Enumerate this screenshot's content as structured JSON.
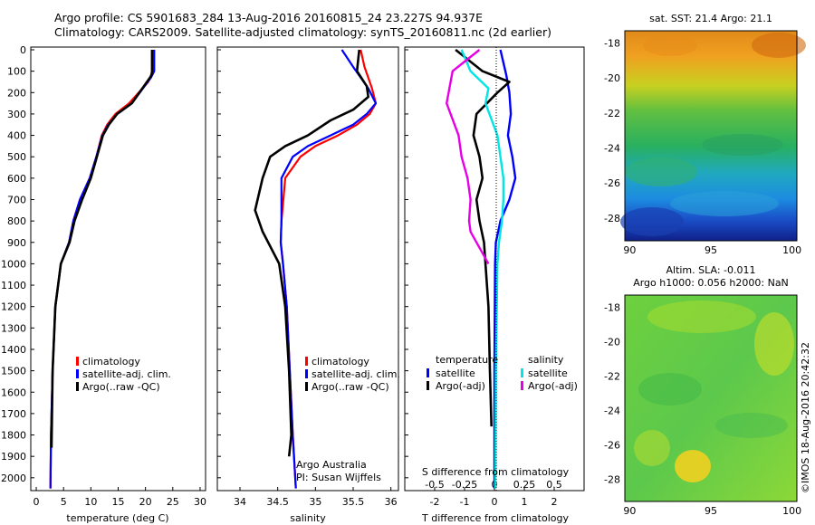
{
  "title_line1": "Argo profile: CS 5901683_284 13-Aug-2016 20160815_24 23.227S 94.937E",
  "title_line2": "Climatology: CARS2009. Satellite-adjusted climatology: synTS_20160811.nc (2d earlier)",
  "colors": {
    "climatology": "#ff0000",
    "satellite": "#0000ff",
    "argo": "#000000",
    "sat_s": "#00e5e5",
    "argo_s": "#e600e6"
  },
  "depth_ticks": [
    0,
    100,
    200,
    300,
    400,
    500,
    600,
    700,
    800,
    900,
    1000,
    1100,
    1200,
    1300,
    1400,
    1500,
    1600,
    1700,
    1800,
    1900,
    2000
  ],
  "legend": {
    "climatology": "climatology",
    "satellite_adj": "satellite-adj. clim.",
    "argo_raw": "Argo(..raw -QC)",
    "temperature": "temperature",
    "salinity": "salinity",
    "satellite": "satellite",
    "argo_adj": "Argo(-adj)"
  },
  "notes": {
    "argo_australia": "Argo Australia",
    "pi": "PI: Susan Wijffels"
  },
  "map_titles": {
    "sst": "sat. SST: 21.4 Argo: 21.1",
    "sla1": "Altim. SLA: -0.011",
    "sla2": "Argo h1000: 0.056 h2000: NaN"
  },
  "credit": "©IMOS 18-Aug-2016 20:42:32",
  "chart_data": [
    {
      "type": "line",
      "xlabel": "temperature (deg C)",
      "ylabel": "",
      "xlim": [
        -1,
        31
      ],
      "ylim": [
        2060,
        0
      ],
      "xticks": [
        0,
        5,
        10,
        15,
        20,
        25,
        30
      ],
      "series": [
        {
          "name": "climatology",
          "x": [
            21.4,
            21.3,
            20.5,
            17,
            14.5,
            13,
            12,
            11,
            9.8,
            8,
            6.8,
            6,
            4.5,
            3.5,
            3,
            2.7,
            2.6
          ],
          "y": [
            0,
            100,
            150,
            250,
            300,
            350,
            400,
            500,
            600,
            700,
            800,
            900,
            1000,
            1200,
            1500,
            1800,
            2050
          ]
        },
        {
          "name": "satellite-adj. clim.",
          "x": [
            21.6,
            21.6,
            21,
            17.5,
            14.8,
            13.2,
            12.1,
            11,
            9.8,
            8,
            6.8,
            6,
            4.5,
            3.5,
            3,
            2.7,
            2.6
          ],
          "y": [
            0,
            100,
            130,
            250,
            300,
            350,
            400,
            500,
            600,
            700,
            800,
            900,
            1000,
            1200,
            1500,
            1800,
            2050
          ]
        },
        {
          "name": "Argo(..raw -QC)",
          "x": [
            21.2,
            21.2,
            21.1,
            17.5,
            14.8,
            13.3,
            12.2,
            11.1,
            10,
            8.4,
            7,
            6.1,
            4.5,
            3.5,
            3,
            2.8
          ],
          "y": [
            0,
            100,
            120,
            250,
            300,
            350,
            400,
            500,
            600,
            700,
            800,
            900,
            1000,
            1200,
            1500,
            1860
          ]
        }
      ]
    },
    {
      "type": "line",
      "xlabel": "salinity",
      "ylabel": "",
      "xlim": [
        33.7,
        36.1
      ],
      "ylim": [
        2060,
        0
      ],
      "xticks": [
        34,
        34.5,
        35,
        35.5,
        36
      ],
      "series": [
        {
          "name": "climatology",
          "x": [
            35.6,
            35.65,
            35.75,
            35.8,
            35.72,
            35.55,
            35.3,
            35.0,
            34.8,
            34.6,
            34.55,
            34.54,
            34.57,
            34.62,
            34.66,
            34.7,
            34.74
          ],
          "y": [
            0,
            80,
            180,
            250,
            300,
            350,
            400,
            450,
            500,
            600,
            800,
            900,
            1000,
            1200,
            1500,
            1800,
            2050
          ]
        },
        {
          "name": "satellite-adj. clim.",
          "x": [
            35.35,
            35.5,
            35.7,
            35.8,
            35.68,
            35.5,
            35.2,
            34.9,
            34.7,
            34.55,
            34.55,
            34.54,
            34.57,
            34.62,
            34.66,
            34.7,
            34.74
          ],
          "y": [
            0,
            80,
            180,
            250,
            300,
            350,
            400,
            450,
            500,
            600,
            800,
            900,
            1000,
            1200,
            1500,
            1800,
            2050
          ]
        },
        {
          "name": "Argo(..raw -QC)",
          "x": [
            35.58,
            35.55,
            35.68,
            35.7,
            35.5,
            35.2,
            34.9,
            34.6,
            34.4,
            34.3,
            34.2,
            34.3,
            34.52,
            34.6,
            34.65,
            34.68,
            34.65
          ],
          "y": [
            0,
            100,
            170,
            220,
            280,
            330,
            400,
            450,
            500,
            600,
            750,
            850,
            1000,
            1200,
            1500,
            1800,
            1900
          ]
        }
      ]
    },
    {
      "type": "line",
      "xlabel": "T difference from climatology",
      "secondary_xlabel": "S difference from climatology",
      "xlim": [
        -3,
        3
      ],
      "ylim": [
        2060,
        0
      ],
      "xticks": [
        -2,
        -1,
        0,
        1,
        2
      ],
      "secondary_xticks": [
        "-0.5",
        "-0.25",
        "0",
        "0.25",
        "0.5"
      ],
      "series": [
        {
          "name": "temperature satellite",
          "x": [
            0.2,
            0.3,
            0.4,
            0.5,
            0.55,
            0.45,
            0.6,
            0.7,
            0.5,
            0.2,
            0.05,
            0.02,
            0,
            0
          ],
          "y": [
            0,
            60,
            120,
            200,
            300,
            400,
            500,
            600,
            700,
            800,
            900,
            1000,
            1500,
            2050
          ]
        },
        {
          "name": "temperature Argo(-adj)",
          "x": [
            -1.3,
            -0.4,
            0.5,
            0.1,
            -0.6,
            -0.7,
            -0.5,
            -0.4,
            -0.6,
            -0.5,
            -0.35,
            -0.3,
            -0.2,
            -0.15,
            -0.1
          ],
          "y": [
            0,
            100,
            150,
            200,
            300,
            400,
            500,
            600,
            700,
            800,
            900,
            1000,
            1200,
            1500,
            1760
          ]
        },
        {
          "name": "salinity satellite",
          "x": [
            -1.1,
            -0.8,
            -0.2,
            -0.3,
            0.1,
            0.2,
            0.3,
            0.3,
            0.25,
            0.15,
            0.1,
            0.05,
            0.03
          ],
          "y": [
            0,
            100,
            180,
            250,
            400,
            500,
            600,
            700,
            800,
            900,
            1000,
            1500,
            2050
          ]
        },
        {
          "name": "salinity Argo(-adj)",
          "x": [
            -0.5,
            -1.4,
            -1.6,
            -1.2,
            -1.1,
            -1.0,
            -0.9,
            -0.8,
            -0.85,
            -0.8,
            -0.6,
            -0.4,
            -0.2
          ],
          "y": [
            0,
            100,
            250,
            400,
            500,
            550,
            600,
            700,
            800,
            850,
            900,
            950,
            1000
          ]
        }
      ]
    },
    {
      "type": "heatmap",
      "title": "sat. SST: 21.4 Argo: 21.1",
      "xticks": [
        90,
        95,
        100
      ],
      "yticks": [
        -18,
        -20,
        -22,
        -24,
        -26,
        -28
      ],
      "xlim": [
        89.7,
        100.3
      ],
      "ylim": [
        -29.3,
        -17.3
      ]
    },
    {
      "type": "heatmap",
      "title": "Altim. SLA: -0.011",
      "xticks": [
        90,
        95,
        100
      ],
      "yticks": [
        -18,
        -20,
        -22,
        -24,
        -26,
        -28
      ],
      "xlim": [
        89.7,
        100.3
      ],
      "ylim": [
        -29.3,
        -17.3
      ]
    }
  ]
}
